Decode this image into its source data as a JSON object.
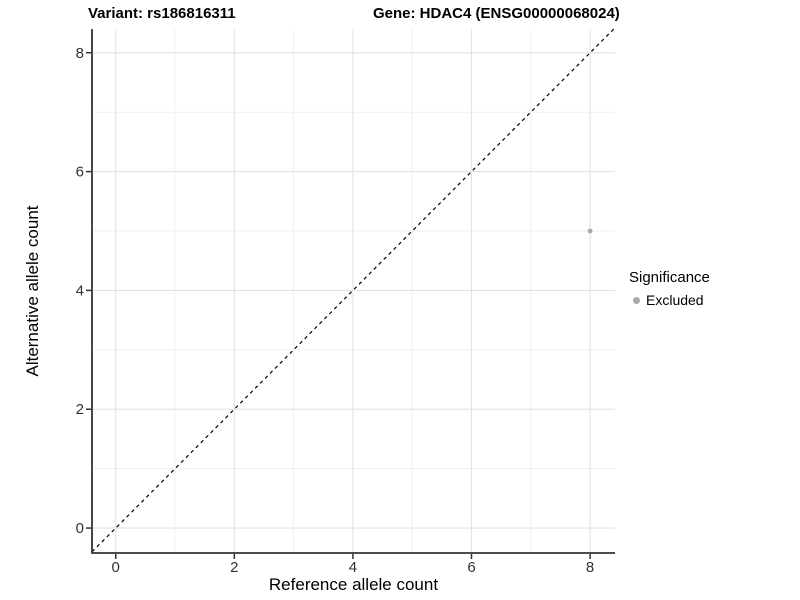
{
  "chart_data": {
    "type": "scatter",
    "title_variant": "Variant: rs186816311",
    "title_gene": "Gene: HDAC4 (ENSG00000068024)",
    "xlabel": "Reference allele count",
    "ylabel": "Alternative allele count",
    "xlim": [
      -0.4,
      8.42
    ],
    "ylim": [
      -0.42,
      8.4
    ],
    "xticks": [
      0,
      2,
      4,
      6,
      8
    ],
    "yticks": [
      0,
      2,
      4,
      6,
      8
    ],
    "minor_xticks": [
      1,
      3,
      5,
      7
    ],
    "minor_yticks": [
      1,
      3,
      5,
      7
    ],
    "grid": true,
    "legend_position": "right",
    "points": [
      {
        "x": 8,
        "y": 5,
        "significance": "Excluded"
      }
    ],
    "identity_line": {
      "slope": 1,
      "intercept": 0,
      "style": "dashed"
    },
    "legend": {
      "title": "Significance",
      "items": [
        {
          "label": "Excluded",
          "marker": "circle",
          "color": "#a8a8a8"
        }
      ]
    }
  },
  "colors": {
    "background": "#ffffff",
    "grid_major": "#e2e2e2",
    "grid_minor": "#efefef",
    "axis_line": "#333333",
    "tick_mark": "#333333",
    "tick_label": "#333333",
    "identity_line": "#000000",
    "point": "#a8a8a8"
  }
}
